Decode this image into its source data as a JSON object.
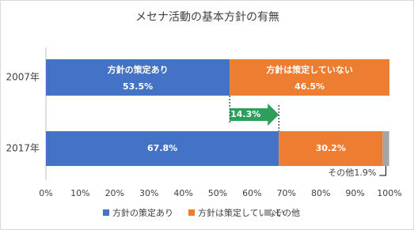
{
  "chart_data": {
    "type": "stacked-barh",
    "title": "メセナ活動の基本方針の有無",
    "categories": [
      "2007年",
      "2017年"
    ],
    "series": [
      {
        "name": "方針の策定あり",
        "color": "#4472c4",
        "values": [
          53.5,
          67.8
        ],
        "value_labels": [
          "53.5%",
          "67.8%"
        ]
      },
      {
        "name": "方針は策定していない",
        "color": "#ed7d31",
        "values": [
          46.5,
          30.2
        ],
        "value_labels": [
          "46.5%",
          "30.2%"
        ]
      },
      {
        "name": "その他",
        "color": "#a5a5a5",
        "values": [
          0,
          1.9
        ],
        "value_labels": [
          null,
          "1.9%"
        ]
      }
    ],
    "xlim": [
      0,
      100
    ],
    "xticks": [
      {
        "value": 0,
        "label": "0%"
      },
      {
        "value": 10,
        "label": "10%"
      },
      {
        "value": 20,
        "label": "20%"
      },
      {
        "value": 30,
        "label": "30%"
      },
      {
        "value": 40,
        "label": "40%"
      },
      {
        "value": 50,
        "label": "50%"
      },
      {
        "value": 60,
        "label": "60%"
      },
      {
        "value": 70,
        "label": "70%"
      },
      {
        "value": 80,
        "label": "80%"
      },
      {
        "value": 90,
        "label": "90%"
      },
      {
        "value": 100,
        "label": "100%"
      }
    ],
    "annotations": [
      {
        "value": 14.3,
        "label": "14.3%"
      }
    ],
    "legend": "bottom"
  }
}
